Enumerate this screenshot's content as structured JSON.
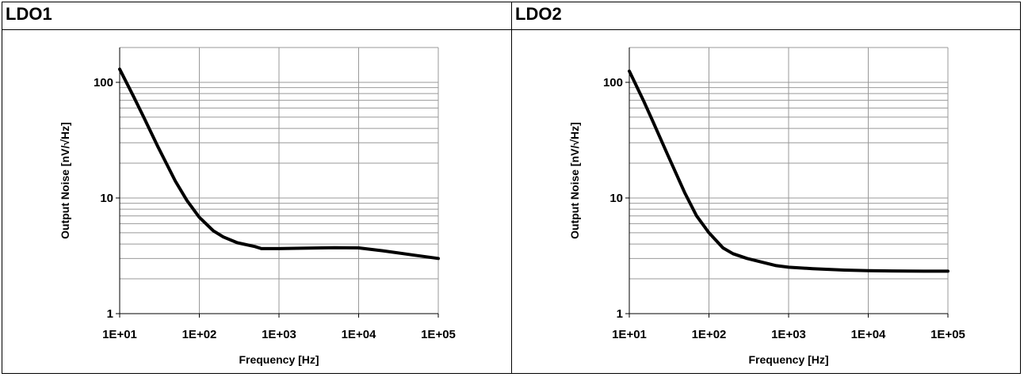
{
  "panels": [
    {
      "title": "LDO1"
    },
    {
      "title": "LDO2"
    }
  ],
  "chart_data": [
    {
      "type": "line",
      "title": "LDO1",
      "xlabel": "Frequency [Hz]",
      "ylabel": "Output Noise [nV/√Hz]",
      "xscale": "log",
      "yscale": "log",
      "xlim": [
        10,
        100000
      ],
      "ylim": [
        1,
        200
      ],
      "grid": true,
      "xticks": [
        "1E+01",
        "1E+02",
        "1E+03",
        "1E+04",
        "1E+05"
      ],
      "yticks": [
        "1",
        "10",
        "100"
      ],
      "series": [
        {
          "color": "#000000",
          "x": [
            10,
            15,
            20,
            30,
            50,
            70,
            100,
            150,
            200,
            300,
            500,
            600,
            1000,
            2000,
            5000,
            10000,
            20000,
            50000,
            100000
          ],
          "y": [
            130,
            75,
            50,
            28,
            14,
            9.5,
            6.8,
            5.2,
            4.6,
            4.1,
            3.8,
            3.65,
            3.65,
            3.68,
            3.72,
            3.7,
            3.5,
            3.2,
            3.0
          ]
        }
      ]
    },
    {
      "type": "line",
      "title": "LDO2",
      "xlabel": "Frequency [Hz]",
      "ylabel": "Output Noise [nV/√Hz]",
      "xscale": "log",
      "yscale": "log",
      "xlim": [
        10,
        100000
      ],
      "ylim": [
        1,
        200
      ],
      "grid": true,
      "xticks": [
        "1E+01",
        "1E+02",
        "1E+03",
        "1E+04",
        "1E+05"
      ],
      "yticks": [
        "1",
        "10",
        "100"
      ],
      "series": [
        {
          "color": "#000000",
          "x": [
            10,
            15,
            20,
            30,
            50,
            70,
            100,
            150,
            200,
            300,
            500,
            700,
            1000,
            2000,
            5000,
            10000,
            20000,
            50000,
            100000
          ],
          "y": [
            125,
            70,
            45,
            24,
            11,
            7,
            5,
            3.7,
            3.3,
            3.0,
            2.75,
            2.6,
            2.52,
            2.45,
            2.38,
            2.35,
            2.34,
            2.33,
            2.33
          ]
        }
      ]
    }
  ]
}
